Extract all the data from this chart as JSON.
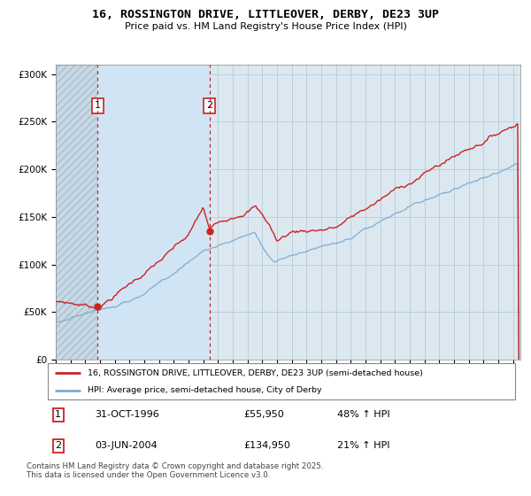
{
  "title": "16, ROSSINGTON DRIVE, LITTLEOVER, DERBY, DE23 3UP",
  "subtitle": "Price paid vs. HM Land Registry's House Price Index (HPI)",
  "sale1_year": 1996.83,
  "sale1_price": 55950,
  "sale2_year": 2004.42,
  "sale2_price": 134950,
  "legend_line1": "16, ROSSINGTON DRIVE, LITTLEOVER, DERBY, DE23 3UP (semi-detached house)",
  "legend_line2": "HPI: Average price, semi-detached house, City of Derby",
  "table_row1": [
    "1",
    "31-OCT-1996",
    "£55,950",
    "48% ↑ HPI"
  ],
  "table_row2": [
    "2",
    "03-JUN-2004",
    "£134,950",
    "21% ↑ HPI"
  ],
  "footer": "Contains HM Land Registry data © Crown copyright and database right 2025.\nThis data is licensed under the Open Government Licence v3.0.",
  "hpi_color": "#7aadd4",
  "price_color": "#cc2222",
  "chart_bg": "#dce8f0",
  "hatch_bg": "#c8d8e4",
  "shade_between": "#d0e4f4",
  "grid_color": "#b0c4d4",
  "xmin": 1994,
  "xmax": 2025.5,
  "ymin": 0,
  "ymax": 310000
}
